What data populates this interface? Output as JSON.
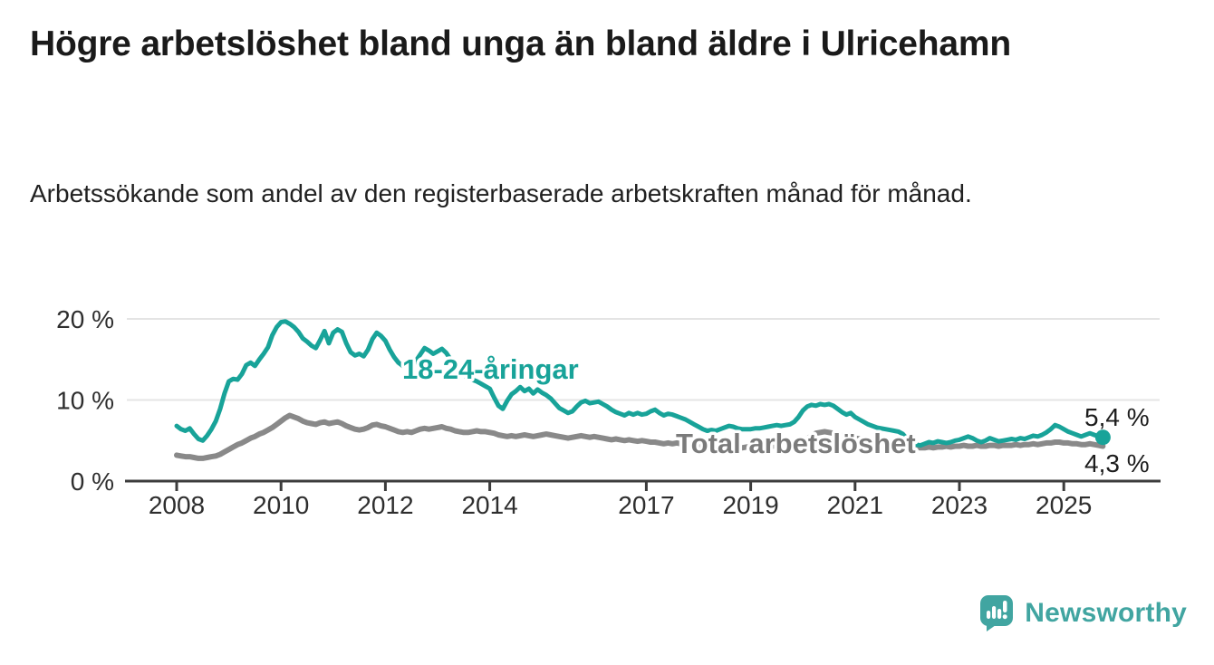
{
  "header": {
    "title": "Högre arbetslöshet bland unga än bland äldre i Ulricehamn",
    "subtitle": "Arbetssökande som andel av den registerbaserade arbetskraften månad för månad."
  },
  "footer": {
    "brand_name": "Newsworthy",
    "brand_color": "#41A5A1",
    "icons": {
      "logo": "newsworthy-speech-bubble-chart-icon"
    }
  },
  "chart_data": {
    "type": "line",
    "unit": "%",
    "frequency": "monthly",
    "x_start": "2008-01",
    "x_end": "2025-10",
    "grid": "horizontal",
    "legend_position": "inline-labels-on-lines",
    "ylim": [
      0,
      21
    ],
    "y_axis": {
      "ticks": [
        {
          "label": "20 %",
          "value": 20
        },
        {
          "label": "10 %",
          "value": 10
        },
        {
          "label": "0 %",
          "value": 0
        }
      ]
    },
    "x_axis": {
      "ticks": [
        {
          "label": "2008",
          "year": 2008
        },
        {
          "label": "2010",
          "year": 2010
        },
        {
          "label": "2012",
          "year": 2012
        },
        {
          "label": "2014",
          "year": 2014
        },
        {
          "label": "2017",
          "year": 2017
        },
        {
          "label": "2019",
          "year": 2019
        },
        {
          "label": "2021",
          "year": 2021
        },
        {
          "label": "2023",
          "year": 2023
        },
        {
          "label": "2025",
          "year": 2025
        }
      ]
    },
    "series": [
      {
        "name": "18-24-åringar",
        "color": "#18A399",
        "label_color": "#18A399",
        "line_width": 5,
        "end_marker": true,
        "end_label": "5,4 %",
        "last_value": 5.4,
        "values": [
          6.8,
          6.4,
          6.2,
          6.5,
          5.8,
          5.2,
          5.0,
          5.6,
          6.4,
          7.4,
          8.9,
          10.8,
          12.3,
          12.6,
          12.5,
          13.2,
          14.3,
          14.6,
          14.2,
          15.0,
          15.7,
          16.5,
          18.0,
          19.0,
          19.6,
          19.7,
          19.4,
          19.0,
          18.4,
          17.6,
          17.2,
          16.7,
          16.4,
          17.4,
          18.5,
          17.0,
          18.3,
          18.7,
          18.4,
          17.0,
          15.9,
          15.5,
          15.7,
          15.4,
          16.2,
          17.5,
          18.3,
          17.9,
          17.3,
          16.2,
          15.3,
          14.6,
          14.2,
          14.5,
          14.1,
          14.8,
          15.6,
          16.4,
          16.1,
          15.7,
          16.0,
          16.3,
          15.8,
          15.0,
          14.3,
          13.7,
          13.1,
          12.7,
          12.5,
          12.3,
          12.0,
          11.7,
          11.4,
          10.3,
          9.3,
          8.9,
          9.9,
          10.7,
          11.1,
          11.6,
          11.1,
          11.4,
          10.8,
          11.3,
          10.9,
          10.6,
          10.2,
          9.6,
          9.0,
          8.7,
          8.4,
          8.6,
          9.2,
          9.7,
          9.9,
          9.6,
          9.7,
          9.8,
          9.5,
          9.2,
          8.8,
          8.5,
          8.3,
          8.1,
          8.4,
          8.2,
          8.4,
          8.2,
          8.3,
          8.6,
          8.8,
          8.4,
          8.1,
          8.3,
          8.2,
          8.0,
          7.8,
          7.6,
          7.3,
          7.0,
          6.7,
          6.4,
          6.2,
          6.3,
          6.2,
          6.4,
          6.6,
          6.8,
          6.7,
          6.5,
          6.4,
          6.4,
          6.4,
          6.5,
          6.5,
          6.6,
          6.7,
          6.8,
          6.9,
          6.8,
          6.9,
          7.0,
          7.3,
          7.9,
          8.7,
          9.2,
          9.4,
          9.3,
          9.5,
          9.4,
          9.5,
          9.3,
          8.9,
          8.5,
          8.2,
          8.4,
          7.9,
          7.6,
          7.3,
          7.0,
          6.8,
          6.6,
          6.5,
          6.4,
          6.3,
          6.2,
          6.1,
          5.8,
          5.2,
          4.8,
          4.5,
          4.4,
          4.6,
          4.8,
          4.7,
          4.9,
          4.8,
          4.7,
          4.8,
          5.0,
          5.1,
          5.3,
          5.5,
          5.3,
          5.0,
          4.8,
          5.0,
          5.3,
          5.1,
          4.9,
          5.0,
          5.1,
          5.2,
          5.1,
          5.3,
          5.2,
          5.4,
          5.6,
          5.5,
          5.7,
          6.0,
          6.4,
          6.9,
          6.7,
          6.4,
          6.1,
          5.9,
          5.7,
          5.5,
          5.7,
          5.9,
          5.7,
          5.5,
          5.4
        ]
      },
      {
        "name": "Total arbetslöshet",
        "color": "#898989",
        "label_color": "#7b7b7b",
        "line_width": 6,
        "end_marker": false,
        "end_label": "4,3 %",
        "last_value": 4.3,
        "values": [
          3.2,
          3.1,
          3.0,
          3.0,
          2.9,
          2.8,
          2.8,
          2.9,
          3.0,
          3.1,
          3.3,
          3.6,
          3.9,
          4.2,
          4.5,
          4.7,
          5.0,
          5.3,
          5.5,
          5.8,
          6.0,
          6.3,
          6.6,
          7.0,
          7.4,
          7.8,
          8.1,
          7.9,
          7.7,
          7.4,
          7.2,
          7.1,
          7.0,
          7.2,
          7.3,
          7.1,
          7.2,
          7.3,
          7.1,
          6.8,
          6.6,
          6.4,
          6.3,
          6.4,
          6.6,
          6.9,
          7.0,
          6.8,
          6.7,
          6.5,
          6.3,
          6.1,
          6.0,
          6.1,
          6.0,
          6.2,
          6.4,
          6.5,
          6.4,
          6.5,
          6.6,
          6.7,
          6.5,
          6.4,
          6.2,
          6.1,
          6.0,
          6.0,
          6.1,
          6.2,
          6.1,
          6.1,
          6.0,
          5.9,
          5.7,
          5.6,
          5.5,
          5.6,
          5.5,
          5.6,
          5.7,
          5.6,
          5.5,
          5.6,
          5.7,
          5.8,
          5.7,
          5.6,
          5.5,
          5.4,
          5.3,
          5.4,
          5.5,
          5.6,
          5.5,
          5.4,
          5.5,
          5.4,
          5.3,
          5.2,
          5.1,
          5.2,
          5.1,
          5.0,
          5.1,
          5.0,
          4.9,
          5.0,
          4.9,
          4.8,
          4.8,
          4.7,
          4.6,
          4.7,
          4.6,
          4.7,
          4.6,
          4.5,
          4.6,
          4.5,
          4.4,
          4.3,
          4.2,
          4.2,
          4.1,
          4.2,
          4.1,
          4.2,
          4.1,
          4.2,
          4.1,
          4.2,
          4.2,
          4.1,
          4.2,
          4.2,
          4.3,
          4.3,
          4.4,
          4.3,
          4.4,
          4.5,
          4.6,
          4.8,
          5.0,
          5.2,
          5.6,
          5.9,
          6.0,
          6.1,
          6.0,
          5.9,
          5.8,
          5.6,
          5.5,
          5.4,
          5.3,
          5.2,
          5.1,
          5.0,
          4.9,
          4.8,
          4.7,
          4.6,
          4.5,
          4.4,
          4.4,
          4.3,
          4.3,
          4.2,
          4.2,
          4.1,
          4.1,
          4.2,
          4.1,
          4.2,
          4.2,
          4.3,
          4.2,
          4.3,
          4.3,
          4.4,
          4.3,
          4.3,
          4.4,
          4.3,
          4.3,
          4.4,
          4.4,
          4.3,
          4.4,
          4.4,
          4.4,
          4.5,
          4.4,
          4.5,
          4.5,
          4.6,
          4.5,
          4.6,
          4.7,
          4.7,
          4.8,
          4.8,
          4.7,
          4.7,
          4.6,
          4.6,
          4.5,
          4.5,
          4.6,
          4.5,
          4.4,
          4.3
        ]
      }
    ]
  }
}
